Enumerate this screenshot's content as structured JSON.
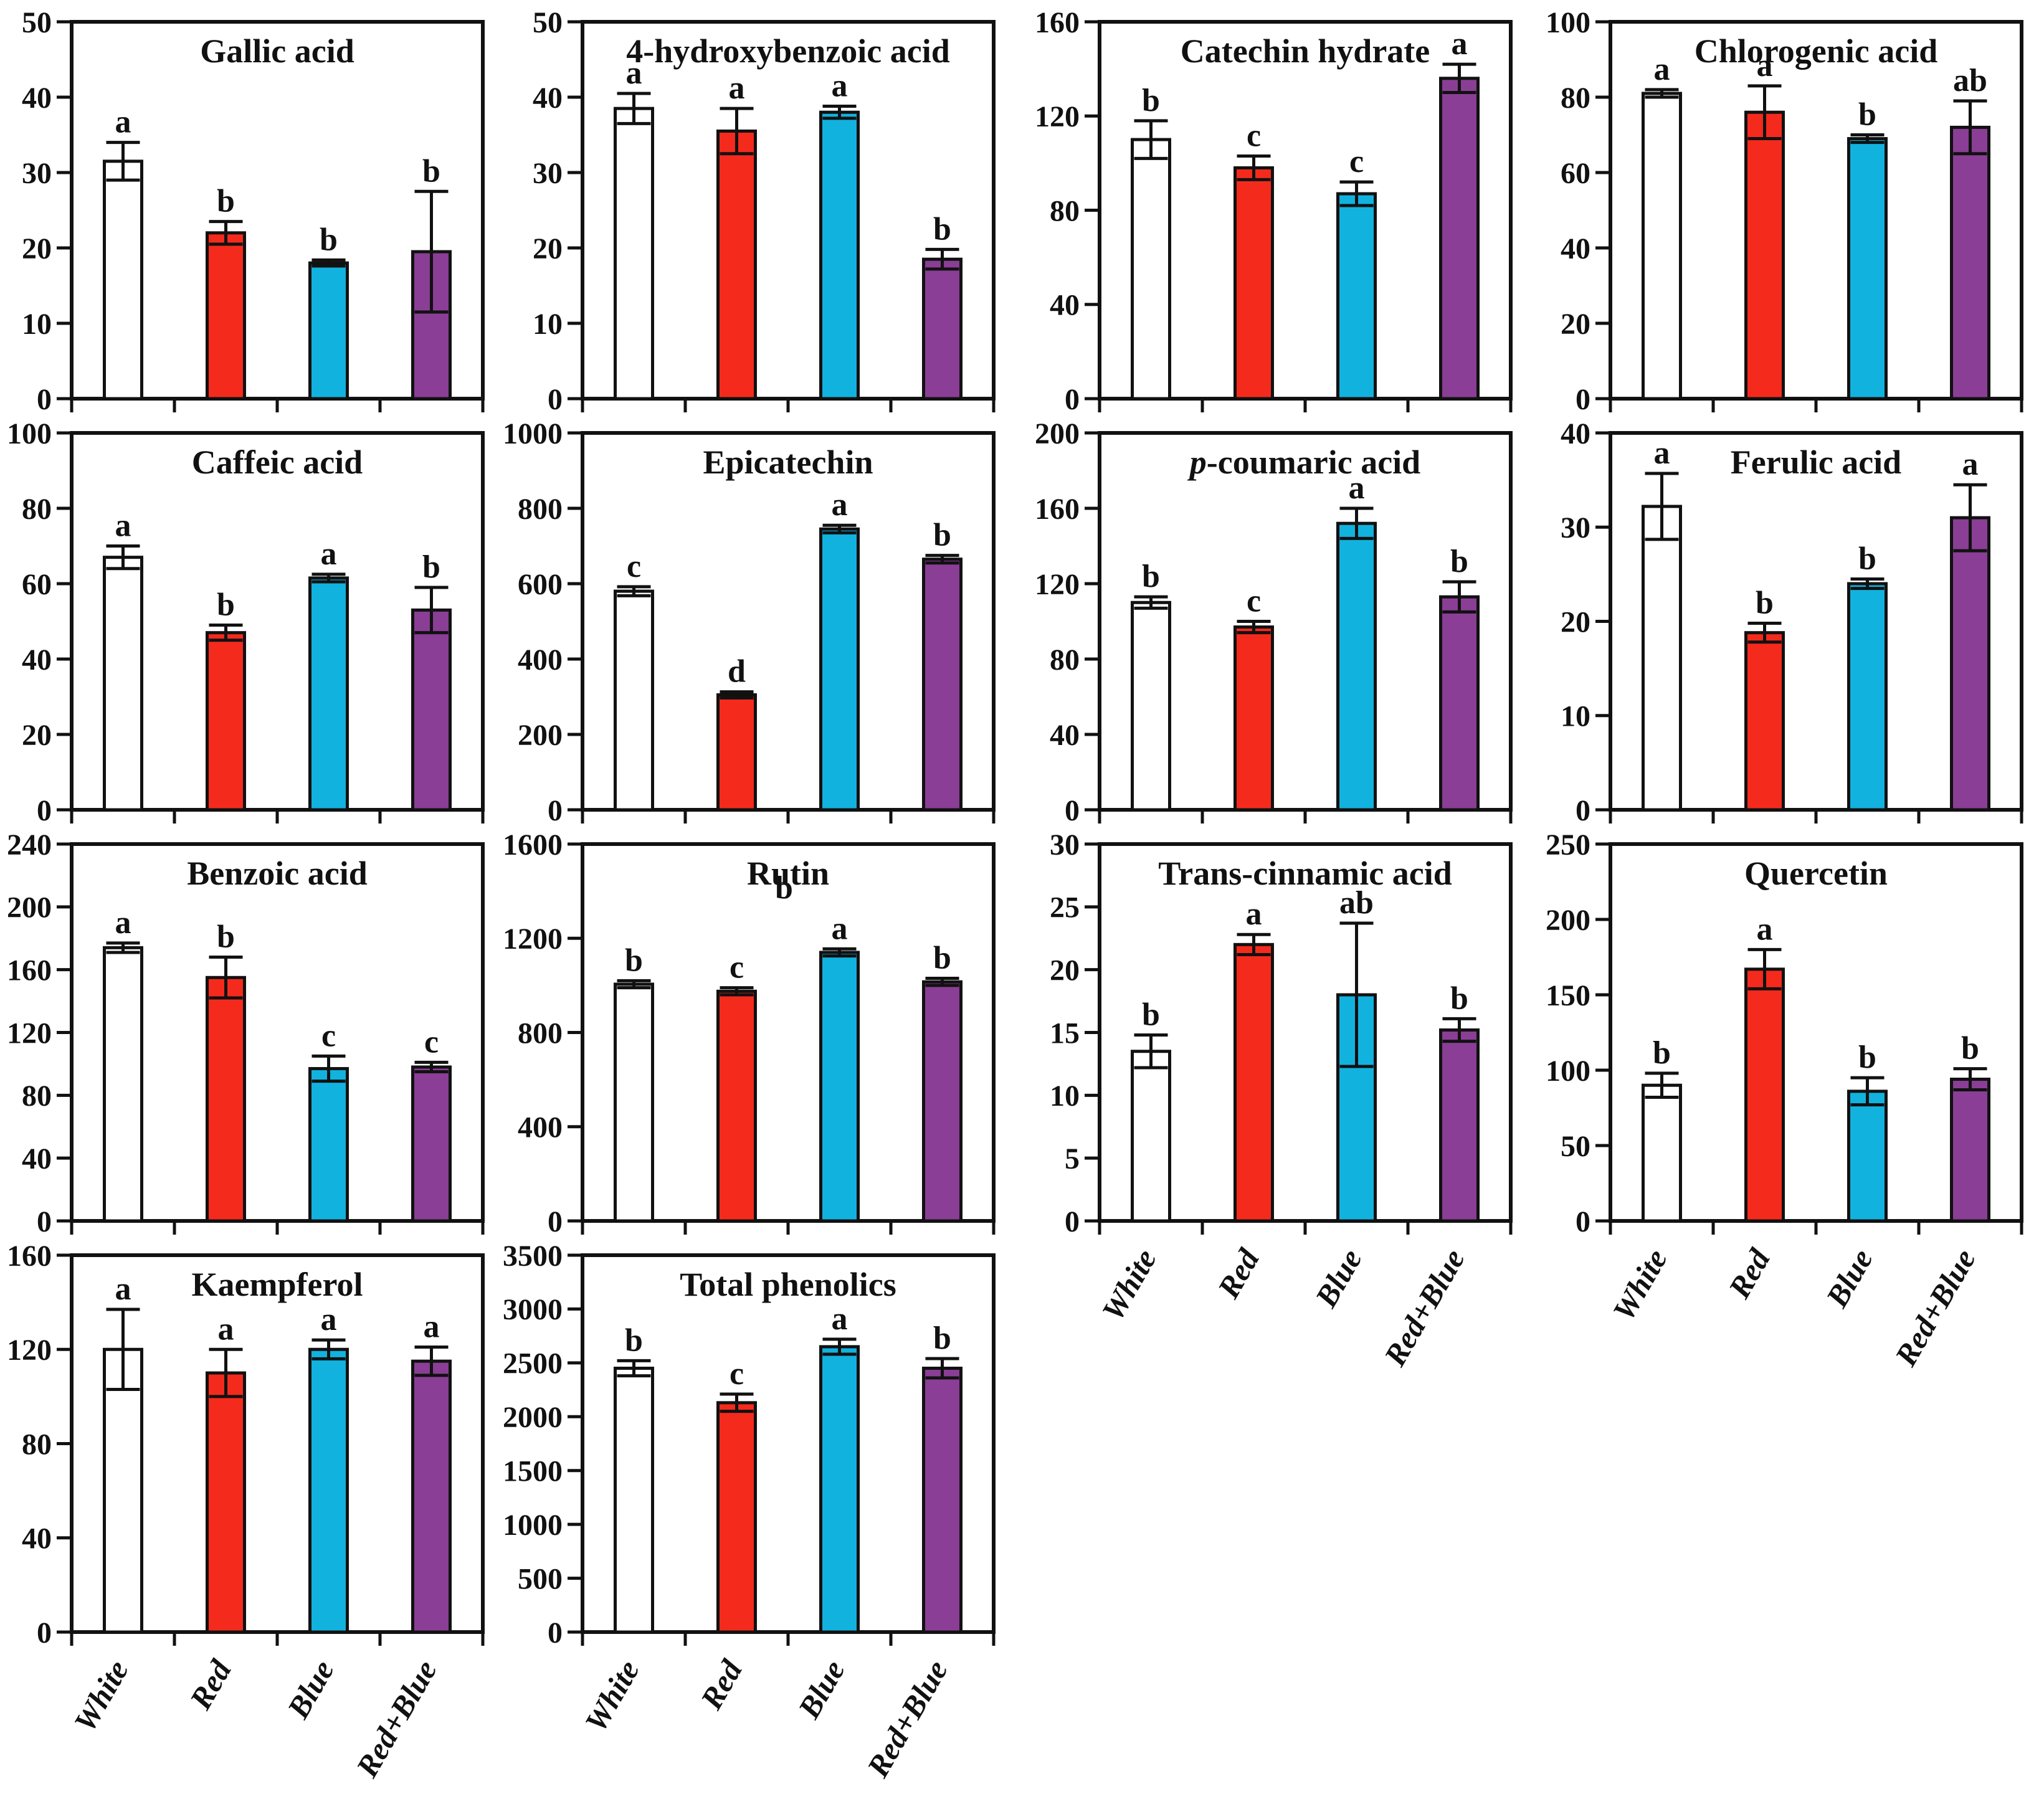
{
  "figure": {
    "description": "Fourteen bar-chart panels of phenolic compound contents under four light treatments",
    "background": "#ffffff",
    "axis_color": "#111111"
  },
  "categories": [
    "White",
    "Red",
    "Blue",
    "Red+Blue"
  ],
  "bar_colors": [
    "#ffffff",
    "#f42a1d",
    "#12b2df",
    "#8a3e95"
  ],
  "chart_data": [
    {
      "type": "bar",
      "title": "Gallic acid",
      "row": 0,
      "col": 0,
      "ylim": [
        0,
        50
      ],
      "yticks": [
        0,
        10,
        20,
        30,
        40,
        50
      ],
      "grid": false,
      "show_xlabels": false,
      "series": [
        {
          "category": "White",
          "value": 31.5,
          "error": 2.5,
          "letter": "a"
        },
        {
          "category": "Red",
          "value": 22,
          "error": 1.5,
          "letter": "b"
        },
        {
          "category": "Blue",
          "value": 18,
          "error": 0.4,
          "letter": "b"
        },
        {
          "category": "Red+Blue",
          "value": 19.5,
          "error": 8,
          "letter": "b"
        }
      ]
    },
    {
      "type": "bar",
      "title": "4-hydroxybenzoic acid",
      "row": 0,
      "col": 1,
      "ylim": [
        0,
        50
      ],
      "yticks": [
        0,
        10,
        20,
        30,
        40,
        50
      ],
      "grid": false,
      "show_xlabels": false,
      "series": [
        {
          "category": "White",
          "value": 38.5,
          "error": 2,
          "letter": "a"
        },
        {
          "category": "Red",
          "value": 35.5,
          "error": 3,
          "letter": "a"
        },
        {
          "category": "Blue",
          "value": 38,
          "error": 0.8,
          "letter": "a"
        },
        {
          "category": "Red+Blue",
          "value": 18.5,
          "error": 1.3,
          "letter": "b"
        }
      ]
    },
    {
      "type": "bar",
      "title": "Catechin hydrate",
      "row": 0,
      "col": 2,
      "ylim": [
        0,
        160
      ],
      "yticks": [
        0,
        40,
        80,
        120,
        160
      ],
      "grid": false,
      "show_xlabels": false,
      "series": [
        {
          "category": "White",
          "value": 110,
          "error": 8,
          "letter": "b"
        },
        {
          "category": "Red",
          "value": 98,
          "error": 5,
          "letter": "c"
        },
        {
          "category": "Blue",
          "value": 87,
          "error": 5,
          "letter": "c"
        },
        {
          "category": "Red+Blue",
          "value": 136,
          "error": 6,
          "letter": "a"
        }
      ]
    },
    {
      "type": "bar",
      "title": "Chlorogenic acid",
      "row": 0,
      "col": 3,
      "ylim": [
        0,
        100
      ],
      "yticks": [
        0,
        20,
        40,
        60,
        80,
        100
      ],
      "grid": false,
      "show_xlabels": false,
      "series": [
        {
          "category": "White",
          "value": 81,
          "error": 1,
          "letter": "a"
        },
        {
          "category": "Red",
          "value": 76,
          "error": 7,
          "letter": "a"
        },
        {
          "category": "Blue",
          "value": 69,
          "error": 1,
          "letter": "b"
        },
        {
          "category": "Red+Blue",
          "value": 72,
          "error": 7,
          "letter": "ab"
        }
      ]
    },
    {
      "type": "bar",
      "title": "Caffeic acid",
      "row": 1,
      "col": 0,
      "ylim": [
        0,
        100
      ],
      "yticks": [
        0,
        20,
        40,
        60,
        80,
        100
      ],
      "grid": false,
      "show_xlabels": false,
      "series": [
        {
          "category": "White",
          "value": 67,
          "error": 3,
          "letter": "a"
        },
        {
          "category": "Red",
          "value": 47,
          "error": 2,
          "letter": "b"
        },
        {
          "category": "Blue",
          "value": 61.5,
          "error": 1,
          "letter": "a"
        },
        {
          "category": "Red+Blue",
          "value": 53,
          "error": 6,
          "letter": "b"
        }
      ]
    },
    {
      "type": "bar",
      "title": "Epicatechin",
      "row": 1,
      "col": 1,
      "ylim": [
        0,
        1000
      ],
      "yticks": [
        0,
        200,
        400,
        600,
        800,
        1000
      ],
      "grid": false,
      "show_xlabels": false,
      "series": [
        {
          "category": "White",
          "value": 580,
          "error": 12,
          "letter": "c"
        },
        {
          "category": "Red",
          "value": 305,
          "error": 8,
          "letter": "d"
        },
        {
          "category": "Blue",
          "value": 745,
          "error": 10,
          "letter": "a"
        },
        {
          "category": "Red+Blue",
          "value": 665,
          "error": 10,
          "letter": "b"
        }
      ]
    },
    {
      "type": "bar",
      "title": "p-coumaric acid",
      "title_italic_prefix": "p",
      "row": 1,
      "col": 2,
      "ylim": [
        0,
        200
      ],
      "yticks": [
        0,
        40,
        80,
        120,
        160,
        200
      ],
      "grid": false,
      "show_xlabels": false,
      "series": [
        {
          "category": "White",
          "value": 110,
          "error": 3,
          "letter": "b"
        },
        {
          "category": "Red",
          "value": 97,
          "error": 3,
          "letter": "c"
        },
        {
          "category": "Blue",
          "value": 152,
          "error": 8,
          "letter": "a"
        },
        {
          "category": "Red+Blue",
          "value": 113,
          "error": 8,
          "letter": "b"
        }
      ]
    },
    {
      "type": "bar",
      "title": "Ferulic acid",
      "row": 1,
      "col": 3,
      "ylim": [
        0,
        40
      ],
      "yticks": [
        0,
        10,
        20,
        30,
        40
      ],
      "grid": false,
      "show_xlabels": false,
      "series": [
        {
          "category": "White",
          "value": 32.2,
          "error": 3.5,
          "letter": "a"
        },
        {
          "category": "Red",
          "value": 18.8,
          "error": 1,
          "letter": "b"
        },
        {
          "category": "Blue",
          "value": 24,
          "error": 0.5,
          "letter": "b"
        },
        {
          "category": "Red+Blue",
          "value": 31,
          "error": 3.5,
          "letter": "a"
        }
      ]
    },
    {
      "type": "bar",
      "title": "Benzoic acid",
      "row": 2,
      "col": 0,
      "ylim": [
        0,
        240
      ],
      "yticks": [
        0,
        40,
        80,
        120,
        160,
        200,
        240
      ],
      "grid": false,
      "show_xlabels": false,
      "series": [
        {
          "category": "White",
          "value": 174,
          "error": 3,
          "letter": "a"
        },
        {
          "category": "Red",
          "value": 155,
          "error": 13,
          "letter": "b"
        },
        {
          "category": "Blue",
          "value": 97,
          "error": 8,
          "letter": "c"
        },
        {
          "category": "Red+Blue",
          "value": 98,
          "error": 3,
          "letter": "c"
        }
      ]
    },
    {
      "type": "bar",
      "title": "Rutin",
      "row": 2,
      "col": 1,
      "ylim": [
        0,
        1600
      ],
      "yticks": [
        0,
        400,
        800,
        1200,
        1600
      ],
      "grid": false,
      "show_xlabels": false,
      "series": [
        {
          "category": "White",
          "value": 1005,
          "error": 15,
          "letter": "b"
        },
        {
          "category": "Red",
          "value": 975,
          "error": 15,
          "letter": "c"
        },
        {
          "category": "Blue",
          "value": 1140,
          "error": 15,
          "letter": "a"
        },
        {
          "category": "Red+Blue",
          "value": 1015,
          "error": 15,
          "letter": "b"
        }
      ],
      "annotations": [
        {
          "text": "b",
          "x_frac": 0.49,
          "value": 1370
        }
      ]
    },
    {
      "type": "bar",
      "title": "Trans-cinnamic acid",
      "row": 2,
      "col": 2,
      "ylim": [
        0,
        30
      ],
      "yticks": [
        0,
        5,
        10,
        15,
        20,
        25,
        30
      ],
      "grid": false,
      "show_xlabels": true,
      "series": [
        {
          "category": "White",
          "value": 13.5,
          "error": 1.3,
          "letter": "b"
        },
        {
          "category": "Red",
          "value": 22,
          "error": 0.8,
          "letter": "a"
        },
        {
          "category": "Blue",
          "value": 18,
          "error": 5.7,
          "letter": "ab"
        },
        {
          "category": "Red+Blue",
          "value": 15.2,
          "error": 0.9,
          "letter": "b"
        }
      ]
    },
    {
      "type": "bar",
      "title": "Quercetin",
      "row": 2,
      "col": 3,
      "ylim": [
        0,
        250
      ],
      "yticks": [
        0,
        50,
        100,
        150,
        200,
        250
      ],
      "grid": false,
      "show_xlabels": true,
      "series": [
        {
          "category": "White",
          "value": 90,
          "error": 8,
          "letter": "b"
        },
        {
          "category": "Red",
          "value": 167,
          "error": 13,
          "letter": "a"
        },
        {
          "category": "Blue",
          "value": 86,
          "error": 9,
          "letter": "b"
        },
        {
          "category": "Red+Blue",
          "value": 94,
          "error": 7,
          "letter": "b"
        }
      ]
    },
    {
      "type": "bar",
      "title": "Kaempferol",
      "row": 3,
      "col": 0,
      "ylim": [
        0,
        160
      ],
      "yticks": [
        0,
        40,
        80,
        120,
        160
      ],
      "grid": false,
      "show_xlabels": true,
      "series": [
        {
          "category": "White",
          "value": 120,
          "error": 17,
          "letter": "a"
        },
        {
          "category": "Red",
          "value": 110,
          "error": 10,
          "letter": "a"
        },
        {
          "category": "Blue",
          "value": 120,
          "error": 4,
          "letter": "a"
        },
        {
          "category": "Red+Blue",
          "value": 115,
          "error": 6,
          "letter": "a"
        }
      ]
    },
    {
      "type": "bar",
      "title": "Total phenolics",
      "row": 3,
      "col": 1,
      "ylim": [
        0,
        3500
      ],
      "yticks": [
        0,
        500,
        1000,
        1500,
        2000,
        2500,
        3000,
        3500
      ],
      "grid": false,
      "show_xlabels": true,
      "series": [
        {
          "category": "White",
          "value": 2450,
          "error": 70,
          "letter": "b"
        },
        {
          "category": "Red",
          "value": 2130,
          "error": 80,
          "letter": "c"
        },
        {
          "category": "Blue",
          "value": 2650,
          "error": 70,
          "letter": "a"
        },
        {
          "category": "Red+Blue",
          "value": 2450,
          "error": 90,
          "letter": "b"
        }
      ]
    }
  ]
}
